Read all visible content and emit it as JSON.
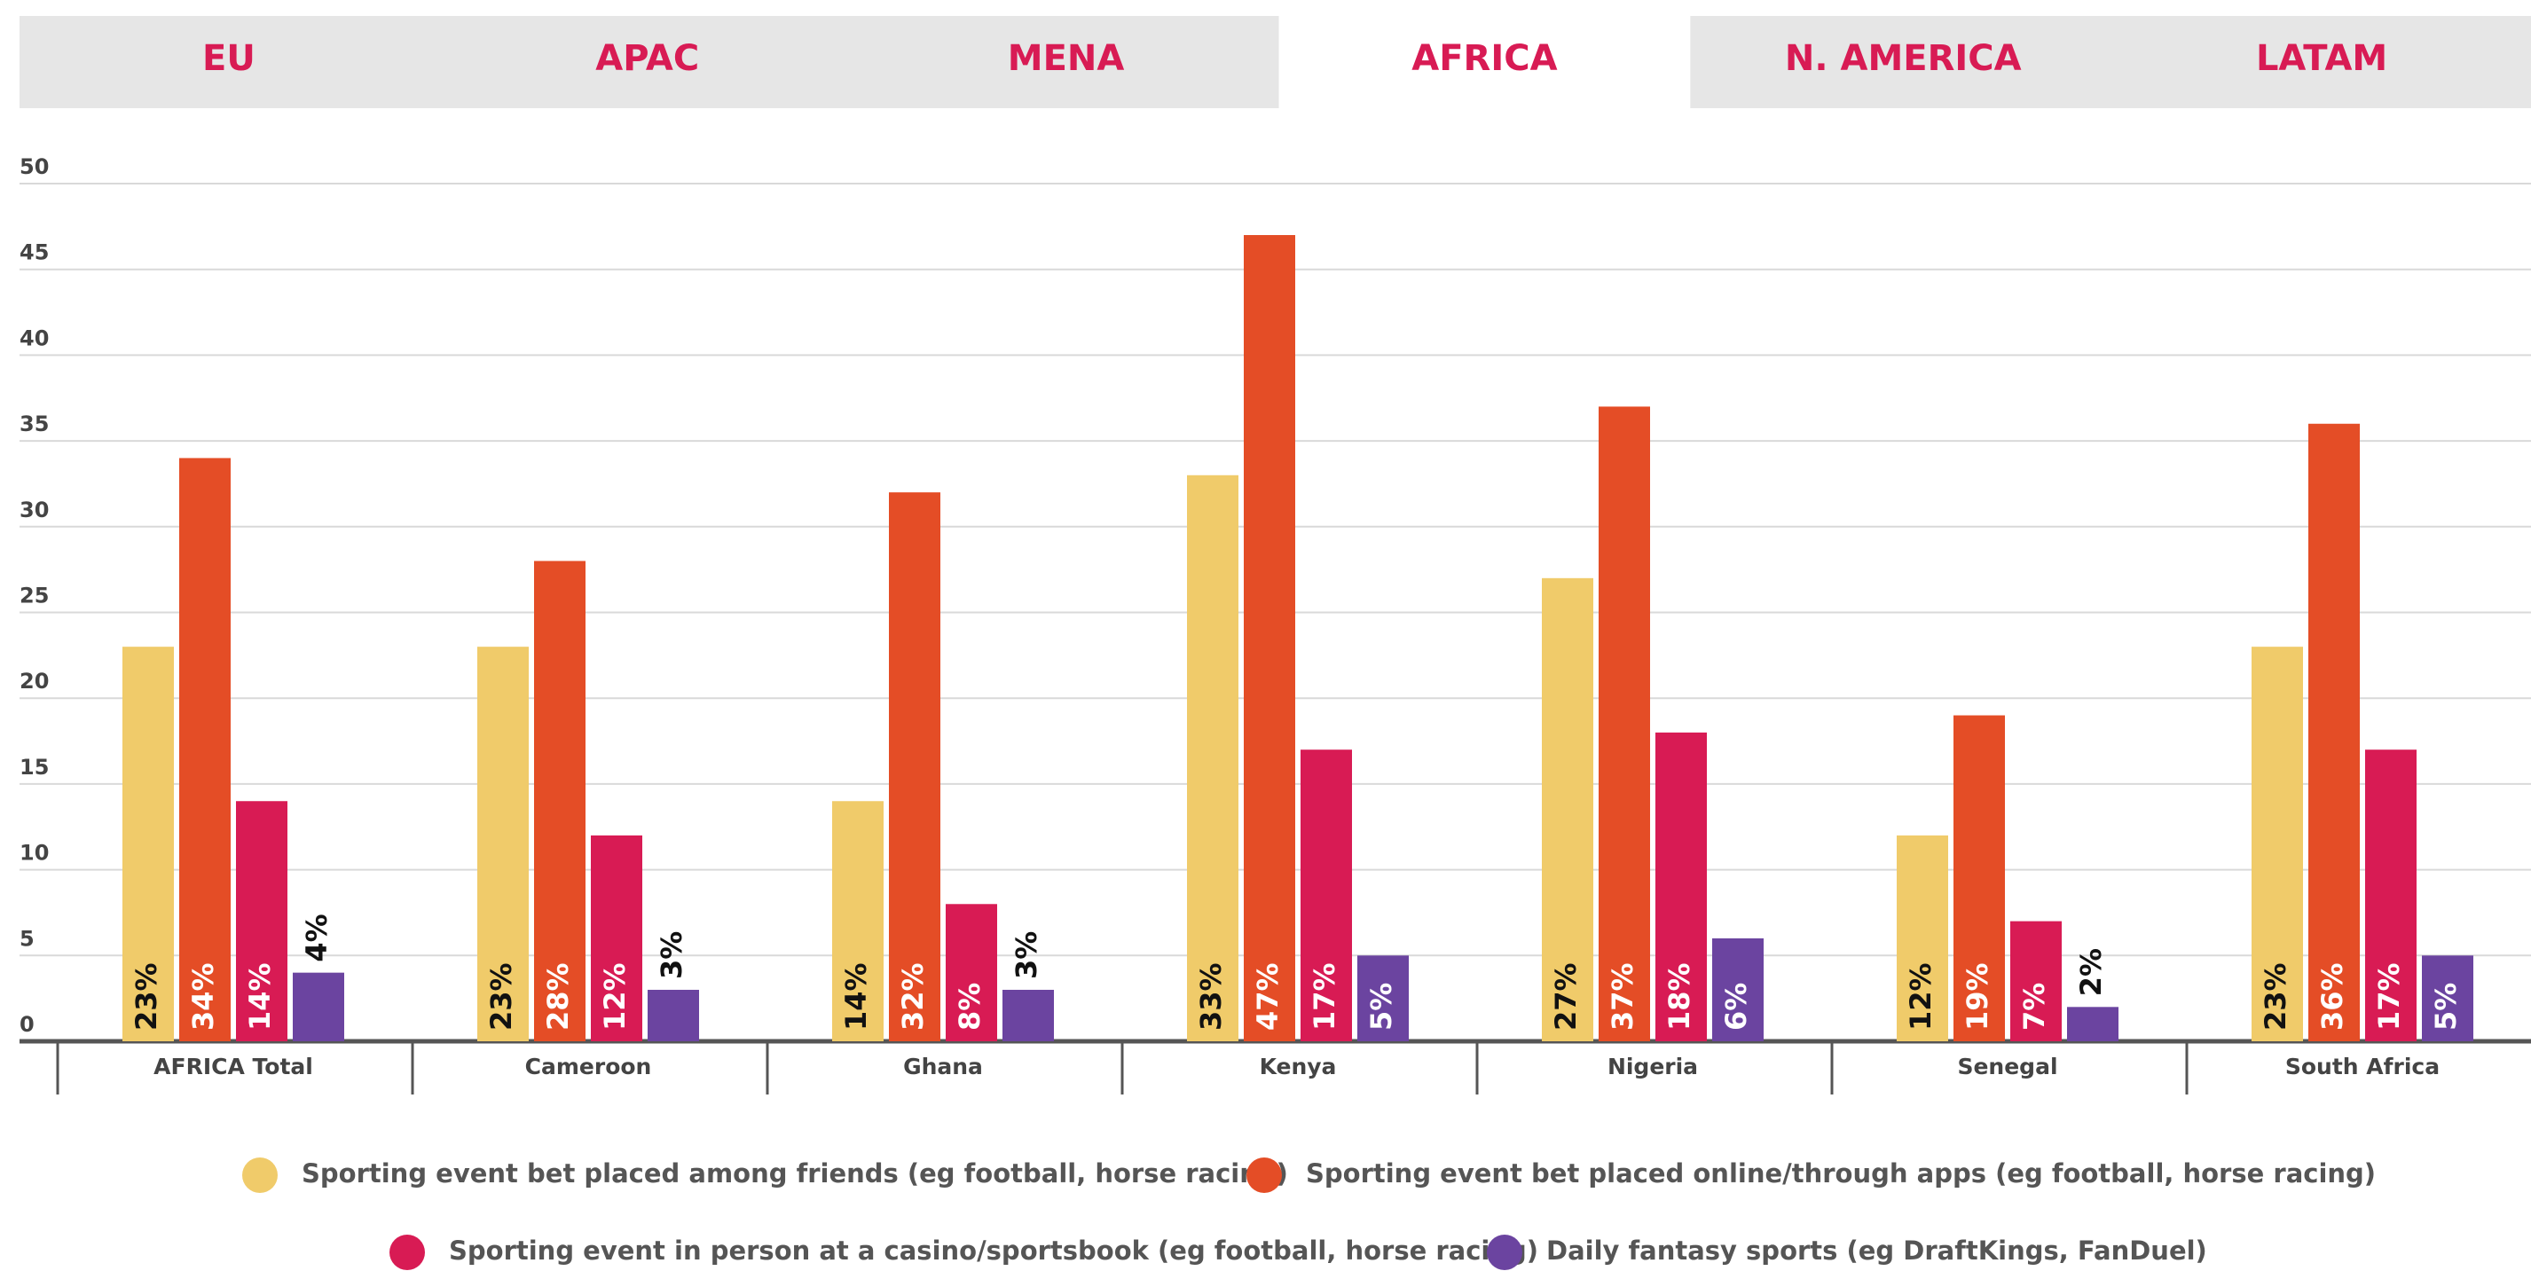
{
  "tabs": [
    {
      "label": "EU"
    },
    {
      "label": "APAC"
    },
    {
      "label": "MENA"
    },
    {
      "label": "AFRICA",
      "active": true
    },
    {
      "label": "N. AMERICA"
    },
    {
      "label": "LATAM"
    }
  ],
  "chart_data": {
    "type": "bar",
    "categories": [
      "AFRICA Total",
      "Cameroon",
      "Ghana",
      "Kenya",
      "Nigeria",
      "Senegal",
      "South Africa"
    ],
    "series": [
      {
        "name": "Sporting event bet placed among friends (eg football, horse racing)",
        "color": "#f0cb6a",
        "values": [
          23,
          23,
          14,
          33,
          27,
          12,
          23
        ],
        "value_labels": [
          "23%",
          "23%",
          "14%",
          "33%",
          "27%",
          "12%",
          "23%"
        ]
      },
      {
        "name": "Sporting event bet placed online/through apps (eg football, horse racing)",
        "color": "#e44d26",
        "values": [
          34,
          28,
          32,
          47,
          37,
          19,
          36
        ],
        "value_labels": [
          "34%",
          "28%",
          "32%",
          "47%",
          "37%",
          "19%",
          "36%"
        ]
      },
      {
        "name": "Sporting event in person at a casino/sportsbook (eg football, horse racing)",
        "color": "#d81b54",
        "values": [
          14,
          12,
          8,
          17,
          18,
          7,
          17
        ],
        "value_labels": [
          "14%",
          "12%",
          "8%",
          "17%",
          "18%",
          "7%",
          "17%"
        ]
      },
      {
        "name": "Daily fantasy sports (eg DraftKings, FanDuel)",
        "color": "#6b44a0",
        "values": [
          4,
          3,
          3,
          5,
          6,
          2,
          5
        ],
        "value_labels": [
          "4%",
          "3%",
          "3%",
          "5%",
          "6%",
          "2%",
          "5%"
        ]
      }
    ],
    "ylim": [
      0,
      50
    ],
    "yticks": [
      0,
      5,
      10,
      15,
      20,
      25,
      30,
      35,
      40,
      45,
      50
    ],
    "grid": true,
    "legend": "bottom"
  }
}
